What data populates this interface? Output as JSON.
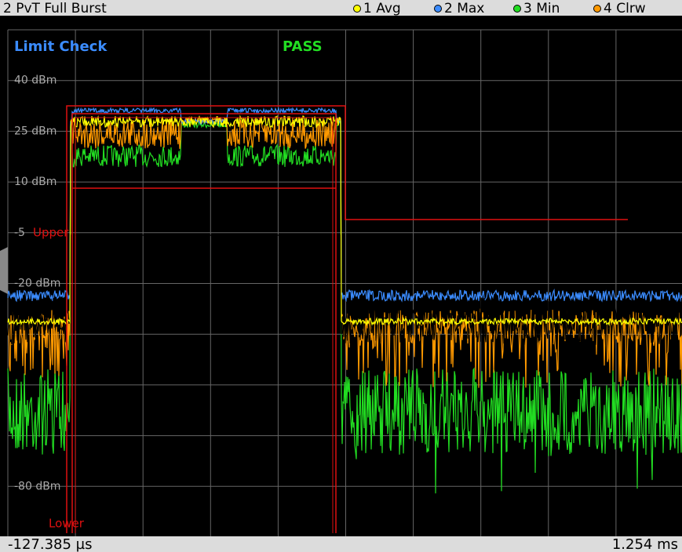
{
  "header": {
    "title": "2 PvT Full Burst",
    "traces": [
      {
        "label": "1 Avg",
        "color": "#ffff00"
      },
      {
        "label": "2 Max",
        "color": "#3b8cff"
      },
      {
        "label": "3 Min",
        "color": "#22dd22"
      },
      {
        "label": "4 Clrw",
        "color": "#ff9900"
      }
    ]
  },
  "plot": {
    "limit_check": "Limit Check",
    "result": "PASS",
    "y_labels": [
      "40 dBm",
      "25 dBm",
      "10 dBm",
      "-5",
      "-20 dBm",
      "-80 dBm"
    ],
    "upper": "Upper",
    "lower": "Lower"
  },
  "footer": {
    "start": "-127.385 µs",
    "stop": "1.254 ms"
  }
}
